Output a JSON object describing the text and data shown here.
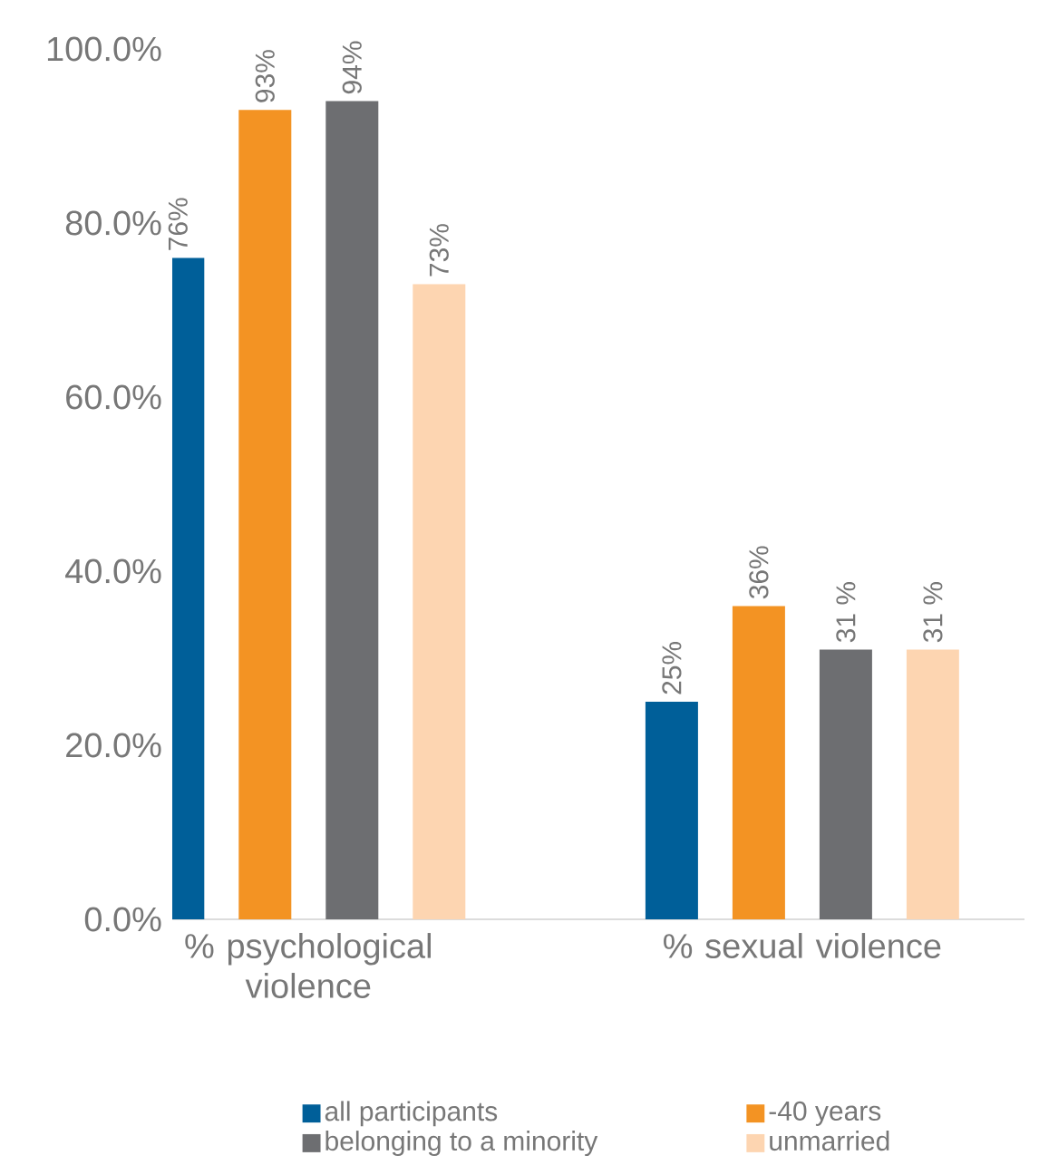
{
  "chart_data": {
    "type": "bar",
    "categories": [
      "% psychological violence",
      "% sexual violence"
    ],
    "series": [
      {
        "name": "all participants",
        "color": "#005f99",
        "values": [
          76,
          25
        ],
        "value_labels": [
          "76%",
          "25%"
        ]
      },
      {
        "name": "-40 years",
        "color": "#f39323",
        "values": [
          93,
          36
        ],
        "value_labels": [
          "93%",
          "36%"
        ]
      },
      {
        "name": "belonging to a minority",
        "color": "#6d6e71",
        "values": [
          94,
          31
        ],
        "value_labels": [
          "94%",
          "31 %"
        ]
      },
      {
        "name": "unmarried",
        "color": "#fdd5b1",
        "values": [
          73,
          31
        ],
        "value_labels": [
          "73%",
          "31 %"
        ]
      }
    ],
    "ylim": [
      0,
      100
    ],
    "yticks": [
      {
        "value": 0,
        "label": "0.0%"
      },
      {
        "value": 20,
        "label": "20.0%"
      },
      {
        "value": 40,
        "label": "40.0%"
      },
      {
        "value": 60,
        "label": "60.0%"
      },
      {
        "value": 80,
        "label": "80.0%"
      },
      {
        "value": 100,
        "label": "100.0%"
      }
    ],
    "legend": "bottom"
  }
}
